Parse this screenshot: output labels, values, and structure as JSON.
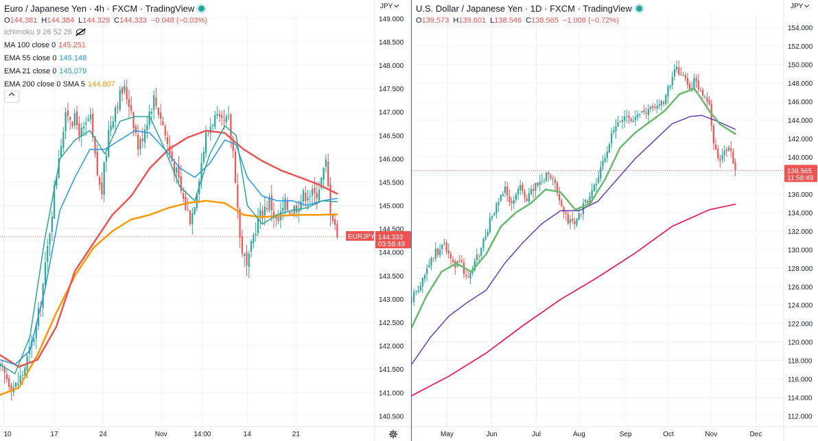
{
  "left": {
    "header": "Euro / Japanese Yen · 4h · FXCM · TradingView",
    "ohlc": {
      "o_label": "O",
      "o": "144.381",
      "h_label": "H",
      "h": "144.384",
      "l_label": "L",
      "l": "144.329",
      "c_label": "C",
      "c": "144.333",
      "change": "−0.048 (−0.03%)"
    },
    "indicators": [
      {
        "label": "Ichimoku 9 26 52 26",
        "value": "",
        "color": "#9598a1"
      },
      {
        "label": "MA 100 close 0",
        "value": "145.251",
        "color": "#ef5350"
      },
      {
        "label": "EMA 55 close 0",
        "value": "145.148",
        "color": "#2196f3"
      },
      {
        "label": "EMA 21 close 0",
        "value": "145.079",
        "color": "#26a69a"
      },
      {
        "label": "EMA 200 close 0 SMA 5",
        "value": "144.807",
        "color": "#ff9800"
      }
    ],
    "currency": "JPY",
    "symbol_tag": "EURJPY",
    "last_price": "144.333",
    "countdown": "03:58:49",
    "y_ticks": [
      "149.000",
      "148.500",
      "148.000",
      "147.500",
      "147.000",
      "146.500",
      "146.000",
      "145.500",
      "145.000",
      "144.500",
      "144.000",
      "143.500",
      "143.000",
      "142.500",
      "142.000",
      "141.500",
      "141.000",
      "140.500"
    ],
    "x_ticks": [
      "10",
      "17",
      "24",
      "Nov",
      "14:00",
      "14",
      "21"
    ]
  },
  "right": {
    "header": "U.S. Dollar / Japanese Yen · 1D · FXCM · TradingView",
    "ohlc": {
      "o_label": "O",
      "o": "139.573",
      "h_label": "H",
      "h": "139.601",
      "l_label": "L",
      "l": "138.546",
      "c_label": "C",
      "c": "138.565",
      "change": "−1.008 (−0.72%)"
    },
    "currency": "JPY",
    "last_price": "138.565",
    "countdown": "11:58:49",
    "y_ticks": [
      "154.000",
      "152.000",
      "150.000",
      "148.000",
      "146.000",
      "144.000",
      "142.000",
      "140.000",
      "138.000",
      "136.000",
      "134.000",
      "132.000",
      "130.000",
      "128.000",
      "126.000",
      "124.000",
      "122.000",
      "120.000",
      "118.000",
      "116.000",
      "114.000",
      "112.000"
    ],
    "x_ticks": [
      "May",
      "Jun",
      "Jul",
      "Aug",
      "Sep",
      "Oct",
      "Nov",
      "Dec"
    ]
  },
  "colors": {
    "up": "#26a69a",
    "down": "#ef5350",
    "ma100": "#ef5350",
    "ema55": "#2196f3",
    "ema21": "#26a69a",
    "ema200": "#ff9800",
    "usd_green": "#66bb6a",
    "usd_purple": "#673ab7",
    "usd_crimson": "#e91e63",
    "grid": "#f0f3fa",
    "divider": "#2962ff"
  },
  "chart_data": [
    {
      "type": "candlestick",
      "title": "Euro / Japanese Yen · 4h · FXCM · TradingView",
      "ylim": [
        140.3,
        149.1
      ],
      "x_range": [
        "10",
        "21"
      ],
      "y_ticks": [
        149.0,
        148.5,
        148.0,
        147.5,
        147.0,
        146.5,
        146.0,
        145.5,
        145.0,
        144.5,
        144.0,
        143.5,
        143.0,
        142.5,
        142.0,
        141.5,
        141.0,
        140.5
      ],
      "x_ticks": [
        "10",
        "17",
        "24",
        "Nov",
        "14:00",
        "14",
        "21"
      ],
      "x_tick_pos": [
        0.01,
        0.145,
        0.275,
        0.43,
        0.54,
        0.66,
        0.79
      ],
      "price_anchors": [
        [
          0,
          141.5
        ],
        [
          0.02,
          141.3
        ],
        [
          0.04,
          141.1
        ],
        [
          0.06,
          141.4
        ],
        [
          0.08,
          141.9
        ],
        [
          0.1,
          142.5
        ],
        [
          0.12,
          143.6
        ],
        [
          0.14,
          145.0
        ],
        [
          0.16,
          146.3
        ],
        [
          0.18,
          147.0
        ],
        [
          0.2,
          146.8
        ],
        [
          0.22,
          146.5
        ],
        [
          0.24,
          146.9
        ],
        [
          0.255,
          145.9
        ],
        [
          0.27,
          145.2
        ],
        [
          0.29,
          146.6
        ],
        [
          0.31,
          147.2
        ],
        [
          0.33,
          147.5
        ],
        [
          0.35,
          147.1
        ],
        [
          0.37,
          146.2
        ],
        [
          0.39,
          146.8
        ],
        [
          0.41,
          147.3
        ],
        [
          0.43,
          146.9
        ],
        [
          0.45,
          146.2
        ],
        [
          0.47,
          145.7
        ],
        [
          0.49,
          145.1
        ],
        [
          0.51,
          144.7
        ],
        [
          0.53,
          145.6
        ],
        [
          0.55,
          146.5
        ],
        [
          0.57,
          146.9
        ],
        [
          0.59,
          146.7
        ],
        [
          0.61,
          146.8
        ],
        [
          0.625,
          146.0
        ],
        [
          0.64,
          144.3
        ],
        [
          0.66,
          143.6
        ],
        [
          0.68,
          144.5
        ],
        [
          0.7,
          144.9
        ],
        [
          0.72,
          145.1
        ],
        [
          0.74,
          144.6
        ],
        [
          0.76,
          145.0
        ],
        [
          0.78,
          144.9
        ],
        [
          0.8,
          145.1
        ],
        [
          0.82,
          145.3
        ],
        [
          0.84,
          145.2
        ],
        [
          0.86,
          145.6
        ],
        [
          0.87,
          145.9
        ],
        [
          0.88,
          145.0
        ],
        [
          0.895,
          144.6
        ],
        [
          0.9,
          144.33
        ]
      ],
      "ma100": [
        [
          0,
          141.8
        ],
        [
          0.05,
          141.55
        ],
        [
          0.1,
          141.7
        ],
        [
          0.15,
          142.4
        ],
        [
          0.2,
          143.6
        ],
        [
          0.25,
          144.2
        ],
        [
          0.3,
          144.8
        ],
        [
          0.35,
          145.2
        ],
        [
          0.4,
          145.8
        ],
        [
          0.45,
          146.2
        ],
        [
          0.5,
          146.45
        ],
        [
          0.55,
          146.6
        ],
        [
          0.6,
          146.55
        ],
        [
          0.65,
          146.2
        ],
        [
          0.7,
          145.95
        ],
        [
          0.75,
          145.75
        ],
        [
          0.8,
          145.6
        ],
        [
          0.85,
          145.45
        ],
        [
          0.9,
          145.25
        ]
      ],
      "ema55": [
        [
          0,
          141.7
        ],
        [
          0.04,
          141.6
        ],
        [
          0.08,
          141.9
        ],
        [
          0.12,
          143.2
        ],
        [
          0.16,
          144.9
        ],
        [
          0.2,
          145.6
        ],
        [
          0.24,
          146.2
        ],
        [
          0.28,
          146.2
        ],
        [
          0.32,
          146.4
        ],
        [
          0.36,
          146.6
        ],
        [
          0.4,
          146.55
        ],
        [
          0.44,
          146.2
        ],
        [
          0.48,
          145.8
        ],
        [
          0.52,
          145.6
        ],
        [
          0.56,
          145.9
        ],
        [
          0.6,
          146.4
        ],
        [
          0.63,
          146.3
        ],
        [
          0.66,
          145.6
        ],
        [
          0.7,
          145.2
        ],
        [
          0.74,
          145.1
        ],
        [
          0.78,
          145.1
        ],
        [
          0.82,
          145.0
        ],
        [
          0.86,
          145.1
        ],
        [
          0.9,
          145.15
        ]
      ],
      "ema21": [
        [
          0,
          141.6
        ],
        [
          0.04,
          141.4
        ],
        [
          0.08,
          142.2
        ],
        [
          0.12,
          144.3
        ],
        [
          0.16,
          146.0
        ],
        [
          0.2,
          146.4
        ],
        [
          0.24,
          146.6
        ],
        [
          0.28,
          146.1
        ],
        [
          0.32,
          146.8
        ],
        [
          0.36,
          146.9
        ],
        [
          0.4,
          146.9
        ],
        [
          0.44,
          146.2
        ],
        [
          0.48,
          145.4
        ],
        [
          0.52,
          145.1
        ],
        [
          0.56,
          146.1
        ],
        [
          0.6,
          146.7
        ],
        [
          0.63,
          146.5
        ],
        [
          0.66,
          145.0
        ],
        [
          0.7,
          144.6
        ],
        [
          0.74,
          144.8
        ],
        [
          0.78,
          144.9
        ],
        [
          0.82,
          144.95
        ],
        [
          0.86,
          145.1
        ],
        [
          0.9,
          145.08
        ]
      ],
      "ema200": [
        [
          0,
          140.95
        ],
        [
          0.05,
          141.1
        ],
        [
          0.1,
          141.8
        ],
        [
          0.15,
          142.7
        ],
        [
          0.2,
          143.5
        ],
        [
          0.25,
          144.1
        ],
        [
          0.3,
          144.45
        ],
        [
          0.35,
          144.7
        ],
        [
          0.4,
          144.8
        ],
        [
          0.45,
          144.95
        ],
        [
          0.5,
          145.05
        ],
        [
          0.55,
          145.1
        ],
        [
          0.6,
          145.05
        ],
        [
          0.65,
          144.8
        ],
        [
          0.7,
          144.75
        ],
        [
          0.75,
          144.78
        ],
        [
          0.8,
          144.8
        ],
        [
          0.85,
          144.8
        ],
        [
          0.9,
          144.81
        ]
      ],
      "last_price": 144.333
    },
    {
      "type": "candlestick",
      "title": "U.S. Dollar / Japanese Yen · 1D · FXCM · TradingView",
      "ylim": [
        111.0,
        155.5
      ],
      "x_range": [
        "May",
        "Dec"
      ],
      "y_ticks": [
        154,
        152,
        150,
        148,
        146,
        144,
        142,
        140,
        138,
        136,
        134,
        132,
        130,
        128,
        126,
        124,
        122,
        120,
        118,
        116,
        114,
        112
      ],
      "x_ticks": [
        "May",
        "Jun",
        "Jul",
        "Aug",
        "Sep",
        "Oct",
        "Nov",
        "Dec"
      ],
      "x_tick_pos": [
        0.095,
        0.215,
        0.335,
        0.45,
        0.575,
        0.69,
        0.805,
        0.925
      ],
      "price_anchors": [
        [
          0,
          124.5
        ],
        [
          0.03,
          127.0
        ],
        [
          0.06,
          129.5
        ],
        [
          0.09,
          130.5
        ],
        [
          0.11,
          128.2
        ],
        [
          0.13,
          128.8
        ],
        [
          0.15,
          126.8
        ],
        [
          0.17,
          128.5
        ],
        [
          0.19,
          130.5
        ],
        [
          0.21,
          133.0
        ],
        [
          0.23,
          134.8
        ],
        [
          0.25,
          136.5
        ],
        [
          0.27,
          135.0
        ],
        [
          0.29,
          136.8
        ],
        [
          0.31,
          135.5
        ],
        [
          0.33,
          136.8
        ],
        [
          0.35,
          137.5
        ],
        [
          0.37,
          138.5
        ],
        [
          0.385,
          137.0
        ],
        [
          0.4,
          134.5
        ],
        [
          0.42,
          133.0
        ],
        [
          0.44,
          132.8
        ],
        [
          0.46,
          134.5
        ],
        [
          0.48,
          136.0
        ],
        [
          0.5,
          137.5
        ],
        [
          0.52,
          140.0
        ],
        [
          0.54,
          142.5
        ],
        [
          0.56,
          143.8
        ],
        [
          0.58,
          144.5
        ],
        [
          0.6,
          144.0
        ],
        [
          0.62,
          144.8
        ],
        [
          0.64,
          145.0
        ],
        [
          0.66,
          145.5
        ],
        [
          0.68,
          146.2
        ],
        [
          0.7,
          148.5
        ],
        [
          0.71,
          149.5
        ],
        [
          0.73,
          149.0
        ],
        [
          0.745,
          147.2
        ],
        [
          0.76,
          148.2
        ],
        [
          0.78,
          147.0
        ],
        [
          0.8,
          146.0
        ],
        [
          0.81,
          141.5
        ],
        [
          0.83,
          139.6
        ],
        [
          0.85,
          141.0
        ],
        [
          0.86,
          140.6
        ],
        [
          0.87,
          138.565
        ]
      ],
      "green_ma": [
        [
          0,
          121.6
        ],
        [
          0.04,
          125.0
        ],
        [
          0.08,
          127.6
        ],
        [
          0.12,
          128.5
        ],
        [
          0.16,
          127.6
        ],
        [
          0.2,
          129.5
        ],
        [
          0.24,
          132.5
        ],
        [
          0.28,
          134.0
        ],
        [
          0.32,
          135.0
        ],
        [
          0.36,
          136.5
        ],
        [
          0.4,
          136.2
        ],
        [
          0.44,
          134.3
        ],
        [
          0.48,
          135.0
        ],
        [
          0.52,
          137.6
        ],
        [
          0.56,
          141.0
        ],
        [
          0.6,
          142.6
        ],
        [
          0.64,
          143.8
        ],
        [
          0.68,
          145.0
        ],
        [
          0.72,
          146.8
        ],
        [
          0.76,
          147.4
        ],
        [
          0.8,
          145.0
        ],
        [
          0.83,
          143.5
        ],
        [
          0.87,
          142.5
        ]
      ],
      "purple_ma": [
        [
          0,
          117.6
        ],
        [
          0.05,
          120.5
        ],
        [
          0.1,
          122.8
        ],
        [
          0.15,
          124.3
        ],
        [
          0.2,
          125.6
        ],
        [
          0.25,
          128.5
        ],
        [
          0.3,
          130.8
        ],
        [
          0.35,
          132.8
        ],
        [
          0.4,
          134.2
        ],
        [
          0.45,
          134.2
        ],
        [
          0.5,
          135.2
        ],
        [
          0.55,
          137.5
        ],
        [
          0.6,
          139.8
        ],
        [
          0.65,
          141.7
        ],
        [
          0.7,
          143.6
        ],
        [
          0.75,
          144.4
        ],
        [
          0.78,
          144.5
        ],
        [
          0.82,
          143.9
        ],
        [
          0.87,
          143.0
        ]
      ],
      "crimson_ma": [
        [
          0,
          114.2
        ],
        [
          0.1,
          116.3
        ],
        [
          0.2,
          118.8
        ],
        [
          0.3,
          121.8
        ],
        [
          0.4,
          124.6
        ],
        [
          0.5,
          127.0
        ],
        [
          0.6,
          129.6
        ],
        [
          0.7,
          132.5
        ],
        [
          0.8,
          134.3
        ],
        [
          0.87,
          134.9
        ]
      ],
      "last_price": 138.565
    }
  ]
}
